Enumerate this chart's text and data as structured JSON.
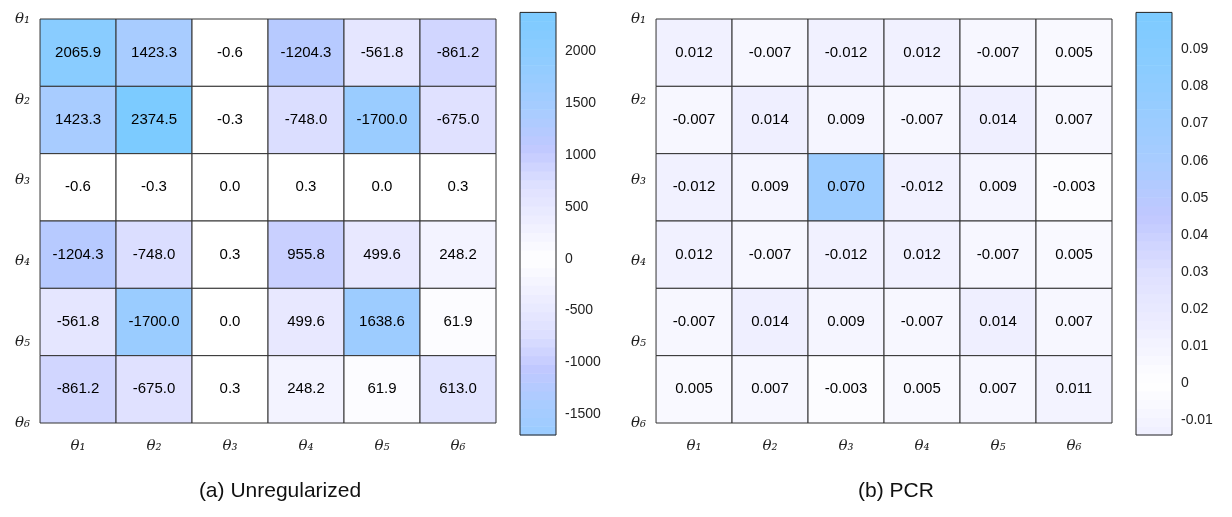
{
  "chart_data": [
    {
      "type": "heatmap",
      "title": "(a) Unregularized",
      "categories": [
        "θ₁",
        "θ₂",
        "θ₃",
        "θ₄",
        "θ₅",
        "θ₆"
      ],
      "y_categories": [
        "θ₁",
        "θ₂",
        "θ₃",
        "θ₄",
        "θ₅",
        "θ₆"
      ],
      "cells": [
        [
          2065.9,
          1423.3,
          -0.6,
          -1204.3,
          -561.8,
          -861.2
        ],
        [
          1423.3,
          2374.5,
          -0.3,
          -748.0,
          -1700.0,
          -675.0
        ],
        [
          -0.6,
          -0.3,
          0.0,
          0.3,
          0.0,
          0.3
        ],
        [
          -1204.3,
          -748.0,
          0.3,
          955.8,
          499.6,
          248.2
        ],
        [
          -561.8,
          -1700.0,
          0.0,
          499.6,
          1638.6,
          61.9
        ],
        [
          -861.2,
          -675.0,
          0.3,
          248.2,
          61.9,
          613.0
        ]
      ],
      "cell_labels": [
        [
          "2065.9",
          "1423.3",
          "-0.6",
          "-1204.3",
          "-561.8",
          "-861.2"
        ],
        [
          "1423.3",
          "2374.5",
          "-0.3",
          "-748.0",
          "-1700.0",
          "-675.0"
        ],
        [
          "-0.6",
          "-0.3",
          "0.0",
          "0.3",
          "0.0",
          "0.3"
        ],
        [
          "-1204.3",
          "-748.0",
          "0.3",
          "955.8",
          "499.6",
          "248.2"
        ],
        [
          "-561.8",
          "-1700.0",
          "0.0",
          "499.6",
          "1638.6",
          "61.9"
        ],
        [
          "-861.2",
          "-675.0",
          "0.3",
          "248.2",
          "61.9",
          "613.0"
        ]
      ],
      "data_labels": true,
      "clim": [
        -1700,
        2374.5
      ],
      "cticks": [
        -1500,
        -1000,
        -500,
        0,
        500,
        1000,
        1500,
        2000
      ]
    },
    {
      "type": "heatmap",
      "title": "(b) PCR",
      "categories": [
        "θ₁",
        "θ₂",
        "θ₃",
        "θ₄",
        "θ₅",
        "θ₆"
      ],
      "y_categories": [
        "θ₁",
        "θ₂",
        "θ₃",
        "θ₄",
        "θ₅",
        "θ₆"
      ],
      "cells": [
        [
          0.012,
          -0.007,
          -0.012,
          0.012,
          -0.007,
          0.005
        ],
        [
          -0.007,
          0.014,
          0.009,
          -0.007,
          0.014,
          0.007
        ],
        [
          -0.012,
          0.009,
          0.07,
          -0.012,
          0.009,
          -0.003
        ],
        [
          0.012,
          -0.007,
          -0.012,
          0.012,
          -0.007,
          0.005
        ],
        [
          -0.007,
          0.014,
          0.009,
          -0.007,
          0.014,
          0.007
        ],
        [
          0.005,
          0.007,
          -0.003,
          0.005,
          0.007,
          0.011
        ]
      ],
      "cell_labels": [
        [
          "0.012",
          "-0.007",
          "-0.012",
          "0.012",
          "-0.007",
          "0.005"
        ],
        [
          "-0.007",
          "0.014",
          "0.009",
          "-0.007",
          "0.014",
          "0.007"
        ],
        [
          "-0.012",
          "0.009",
          "0.070",
          "-0.012",
          "0.009",
          "-0.003"
        ],
        [
          "0.012",
          "-0.007",
          "-0.012",
          "0.012",
          "-0.007",
          "0.005"
        ],
        [
          "-0.007",
          "0.014",
          "0.009",
          "-0.007",
          "0.014",
          "0.007"
        ],
        [
          "0.005",
          "0.007",
          "-0.003",
          "0.005",
          "0.007",
          "0.011"
        ]
      ],
      "data_labels": true,
      "clim": [
        -0.014,
        0.1
      ],
      "cticks": [
        -0.01,
        0,
        0.01,
        0.02,
        0.03,
        0.04,
        0.05,
        0.06,
        0.07,
        0.08,
        0.09
      ]
    }
  ]
}
